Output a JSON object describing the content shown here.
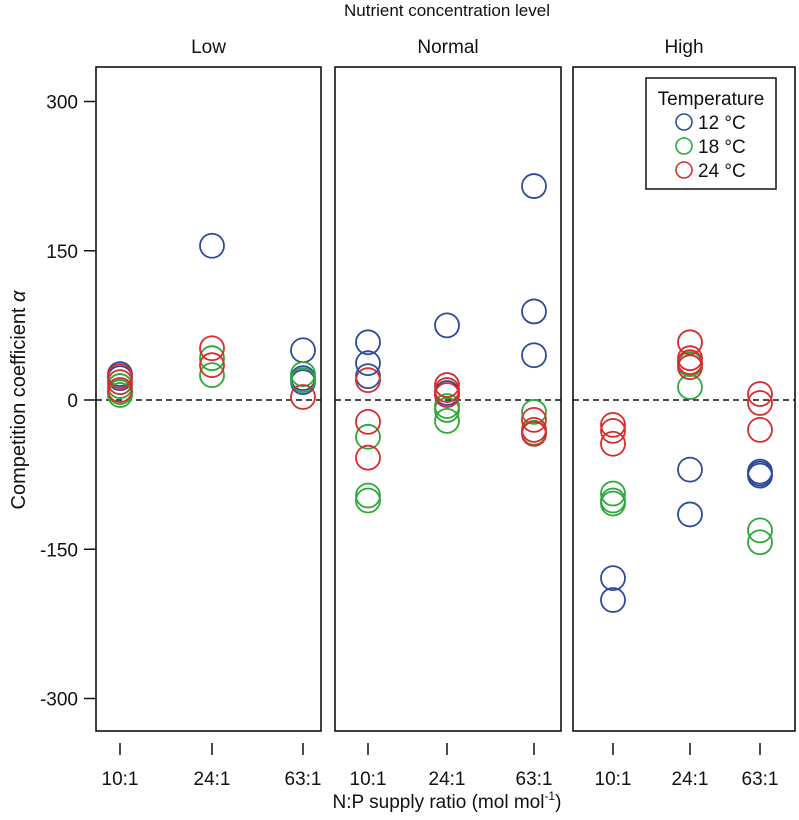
{
  "chart_data": {
    "type": "scatter",
    "title": "Nutrient concentration level",
    "xlabel": "N:P supply ratio (mol mol",
    "xlabel_superscript": "-1",
    "xlabel_suffix": ")",
    "ylabel": "Competition coefficient ",
    "ylabel_symbol": "α",
    "ylim": [
      -300,
      300
    ],
    "yticks": [
      300,
      150,
      0,
      -150,
      -300
    ],
    "ytick_labels": [
      "300",
      "150",
      "0",
      "-150",
      "-300"
    ],
    "reference_line": {
      "y": 0,
      "style": "dashed"
    },
    "categories": [
      "10:1",
      "24:1",
      "63:1"
    ],
    "legend": {
      "title": "Temperature",
      "placement": "top-right of High panel",
      "entries": [
        {
          "label": "12 °C",
          "color": "#2e4a9a"
        },
        {
          "label": "18 °C",
          "color": "#2ea83a"
        },
        {
          "label": "24 °C",
          "color": "#d92b2b"
        }
      ]
    },
    "panels": [
      {
        "name": "Low",
        "series": [
          {
            "name": "12 °C",
            "points": {
              "10:1": [
                26,
                22
              ],
              "24:1": [
                155
              ],
              "63:1": [
                50,
                22,
                18
              ]
            }
          },
          {
            "name": "18 °C",
            "points": {
              "10:1": [
                14,
                8,
                5
              ],
              "24:1": [
                42,
                25
              ],
              "63:1": [
                26,
                20
              ]
            }
          },
          {
            "name": "24 °C",
            "points": {
              "10:1": [
                24,
                18,
                10
              ],
              "24:1": [
                52,
                35
              ],
              "63:1": [
                3
              ]
            }
          }
        ]
      },
      {
        "name": "Normal",
        "series": [
          {
            "name": "12 °C",
            "points": {
              "10:1": [
                58,
                37,
                24
              ],
              "24:1": [
                75,
                7
              ],
              "63:1": [
                215,
                89,
                45
              ]
            }
          },
          {
            "name": "18 °C",
            "points": {
              "10:1": [
                -37,
                -96,
                -101
              ],
              "24:1": [
                -6,
                -10,
                -21
              ],
              "63:1": [
                -12,
                -33
              ]
            }
          },
          {
            "name": "24 °C",
            "points": {
              "10:1": [
                20,
                -22,
                -58
              ],
              "24:1": [
                15,
                10,
                5
              ],
              "63:1": [
                -20,
                -30,
                -34
              ]
            }
          }
        ]
      },
      {
        "name": "High",
        "series": [
          {
            "name": "12 °C",
            "points": {
              "10:1": [
                -179,
                -201
              ],
              "24:1": [
                -70,
                -115
              ],
              "63:1": [
                -72,
                -76,
                -74
              ]
            }
          },
          {
            "name": "18 °C",
            "points": {
              "10:1": [
                -94,
                -101,
                -104
              ],
              "24:1": [
                36,
                13
              ],
              "63:1": [
                -131,
                -143
              ]
            }
          },
          {
            "name": "24 °C",
            "points": {
              "10:1": [
                -25,
                -31,
                -44
              ],
              "24:1": [
                58,
                42,
                38,
                33
              ],
              "63:1": [
                6,
                -3,
                -30
              ]
            }
          }
        ]
      }
    ]
  }
}
